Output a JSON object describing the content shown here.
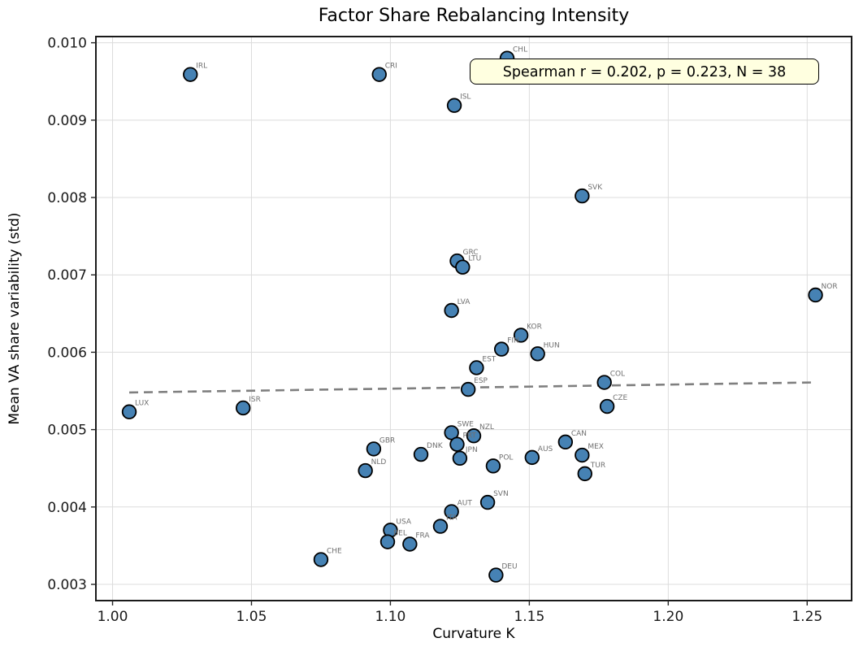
{
  "figure": {
    "background": "#ffffff"
  },
  "chart_data": {
    "type": "scatter",
    "title": "Factor Share Rebalancing Intensity",
    "xlabel": "Curvature K",
    "ylabel": "Mean VA share variability (std)",
    "xlim": [
      0.994,
      1.266
    ],
    "ylim": [
      0.00279,
      0.01008
    ],
    "x_ticks": [
      1.0,
      1.05,
      1.1,
      1.15,
      1.2,
      1.25
    ],
    "y_ticks": [
      0.003,
      0.004,
      0.005,
      0.006,
      0.007,
      0.008,
      0.009,
      0.01
    ],
    "grid": true,
    "legend": "none",
    "annotation": "Spearman r = 0.202, p = 0.223, N = 38",
    "stats": {
      "spearman_r": 0.202,
      "p_value": 0.223,
      "n": 38
    },
    "annotation_style": {
      "bg": "#ffffe0",
      "border": "#000000"
    },
    "marker": {
      "fill": "#4682b4",
      "edge": "#000000",
      "radius": 8.3,
      "edge_width": 1.8
    },
    "label_color": "#707070",
    "trend_line": {
      "style": "dashed",
      "color": "#7f7f7f",
      "width": 2.6,
      "x": [
        1.006,
        1.253
      ],
      "y": [
        0.00548,
        0.00561
      ]
    },
    "points": [
      {
        "label": "IRL",
        "x": 1.028,
        "y": 0.00959
      },
      {
        "label": "CRI",
        "x": 1.096,
        "y": 0.00959
      },
      {
        "label": "CHL",
        "x": 1.142,
        "y": 0.0098
      },
      {
        "label": "ISL",
        "x": 1.123,
        "y": 0.00919
      },
      {
        "label": "SVK",
        "x": 1.169,
        "y": 0.00802
      },
      {
        "label": "GRC",
        "x": 1.124,
        "y": 0.00718
      },
      {
        "label": "LTU",
        "x": 1.126,
        "y": 0.0071
      },
      {
        "label": "LVA",
        "x": 1.122,
        "y": 0.00654
      },
      {
        "label": "NOR",
        "x": 1.253,
        "y": 0.00674
      },
      {
        "label": "KOR",
        "x": 1.147,
        "y": 0.00622
      },
      {
        "label": "FIN",
        "x": 1.14,
        "y": 0.00604
      },
      {
        "label": "HUN",
        "x": 1.153,
        "y": 0.00598
      },
      {
        "label": "EST",
        "x": 1.131,
        "y": 0.0058
      },
      {
        "label": "ESP",
        "x": 1.128,
        "y": 0.00552
      },
      {
        "label": "COL",
        "x": 1.177,
        "y": 0.00561
      },
      {
        "label": "CZE",
        "x": 1.178,
        "y": 0.0053
      },
      {
        "label": "LUX",
        "x": 1.006,
        "y": 0.00523
      },
      {
        "label": "ISR",
        "x": 1.047,
        "y": 0.00528
      },
      {
        "label": "SWE",
        "x": 1.122,
        "y": 0.00496
      },
      {
        "label": "NZL",
        "x": 1.13,
        "y": 0.00492
      },
      {
        "label": "PRT",
        "x": 1.124,
        "y": 0.00481
      },
      {
        "label": "CAN",
        "x": 1.163,
        "y": 0.00484
      },
      {
        "label": "GBR",
        "x": 1.094,
        "y": 0.00475
      },
      {
        "label": "DNK",
        "x": 1.111,
        "y": 0.00468
      },
      {
        "label": "JPN",
        "x": 1.125,
        "y": 0.00463
      },
      {
        "label": "AUS",
        "x": 1.151,
        "y": 0.00464
      },
      {
        "label": "MEX",
        "x": 1.169,
        "y": 0.00467
      },
      {
        "label": "POL",
        "x": 1.137,
        "y": 0.00453
      },
      {
        "label": "NLD",
        "x": 1.091,
        "y": 0.00447
      },
      {
        "label": "TUR",
        "x": 1.17,
        "y": 0.00443
      },
      {
        "label": "SVN",
        "x": 1.135,
        "y": 0.00406
      },
      {
        "label": "AUT",
        "x": 1.122,
        "y": 0.00394
      },
      {
        "label": "ITA",
        "x": 1.118,
        "y": 0.00375
      },
      {
        "label": "USA",
        "x": 1.1,
        "y": 0.0037
      },
      {
        "label": "BEL",
        "x": 1.099,
        "y": 0.00355
      },
      {
        "label": "FRA",
        "x": 1.107,
        "y": 0.00352
      },
      {
        "label": "CHE",
        "x": 1.075,
        "y": 0.00332
      },
      {
        "label": "DEU",
        "x": 1.138,
        "y": 0.00312
      }
    ]
  }
}
